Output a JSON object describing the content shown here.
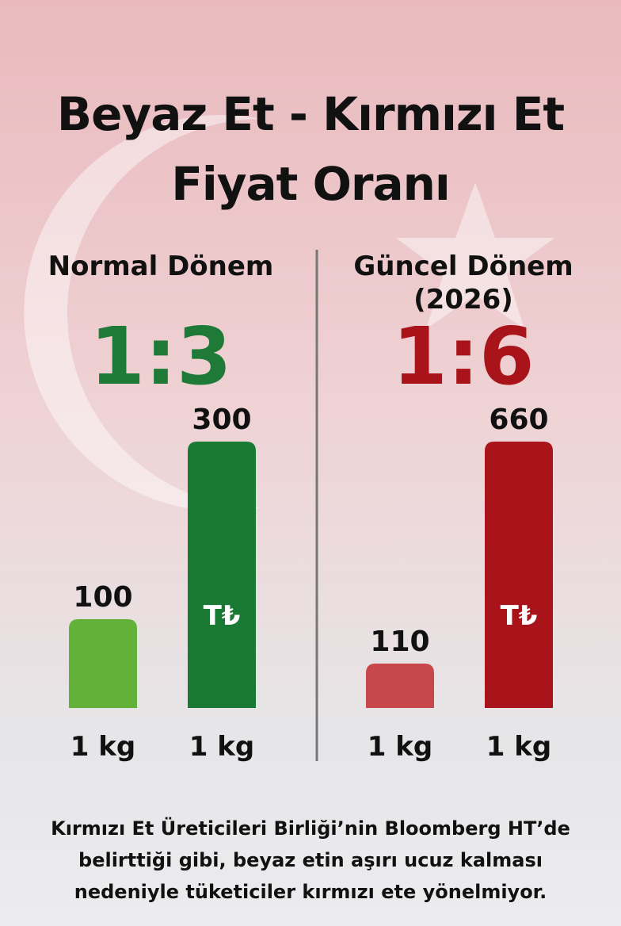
{
  "header": {
    "title": "Beyaz Et - Kırmızı Et Fiyat Oranı"
  },
  "chart_data": [
    {
      "type": "bar",
      "title": "Normal Dönem",
      "ratio": "1:3",
      "ratio_color": "#1e7a36",
      "categories": [
        "1 kg",
        "1 kg"
      ],
      "values": [
        100,
        300
      ],
      "colors": [
        "#62b23a",
        "#1a7a34"
      ],
      "currency_symbol": "T₺"
    },
    {
      "type": "bar",
      "title": "Güncel Dönem (2026)",
      "ratio": "1:6",
      "ratio_color": "#a8141a",
      "categories": [
        "1 kg",
        "1 kg"
      ],
      "values": [
        110,
        660
      ],
      "colors": [
        "#c8474a",
        "#a8141a"
      ],
      "currency_symbol": "T₺"
    }
  ],
  "footer": {
    "text": "Kırmızı Et Üreticileri Birliği’nin Bloomberg HT’de belirttiği gibi, beyaz etin aşırı ucuz kalması nedeniyle tüketiciler kırmızı ete yönelmiyor."
  }
}
